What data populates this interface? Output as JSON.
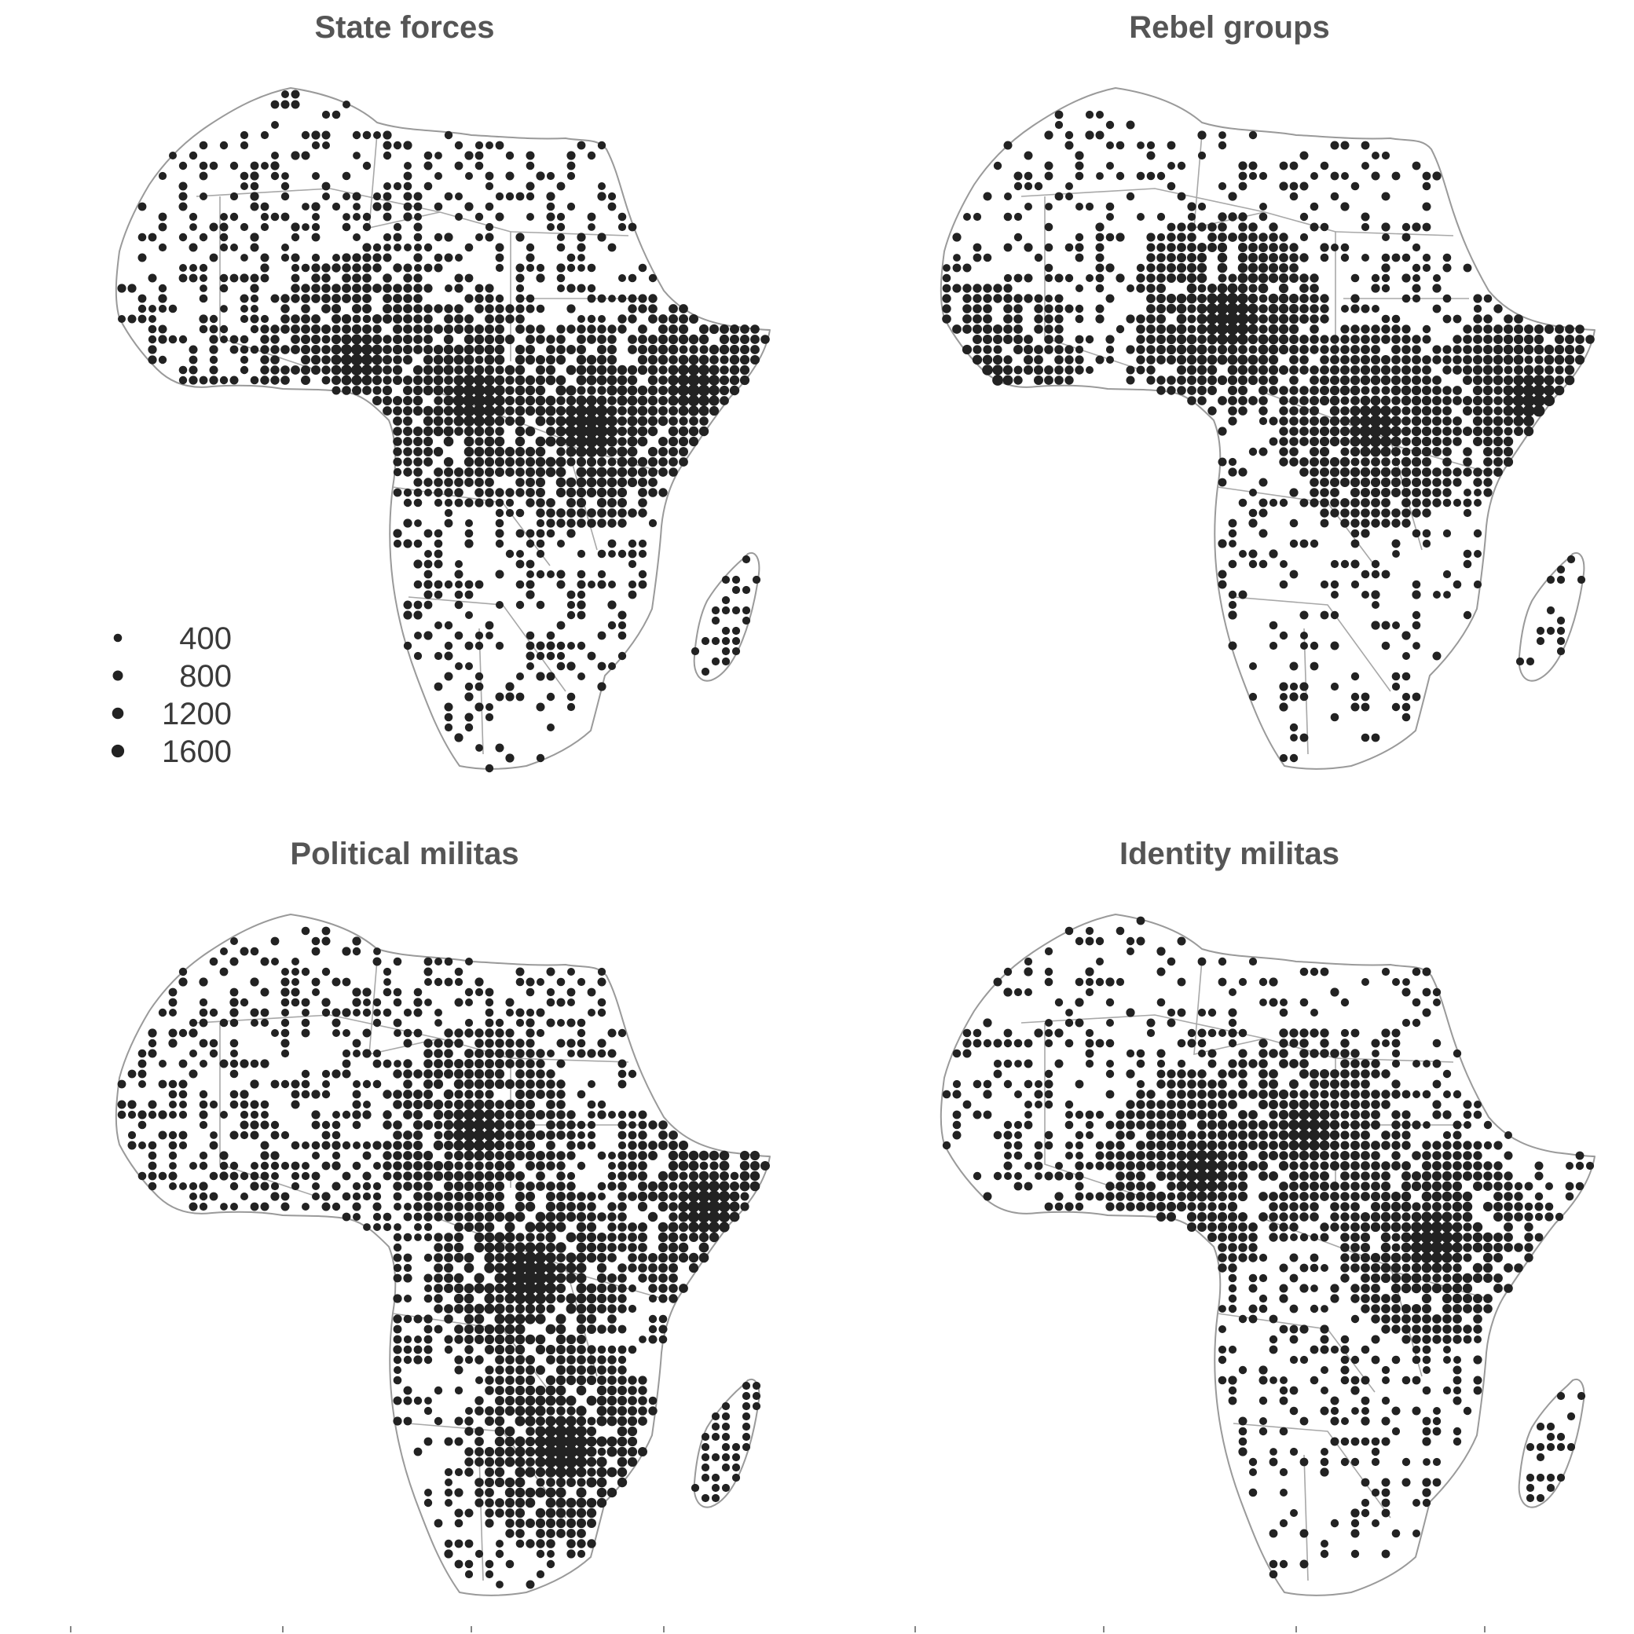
{
  "panels": [
    {
      "id": "state",
      "title": "State forces",
      "seed": 11,
      "density": 0.55,
      "hotspots": [
        [
          0.72,
          0.5,
          1500
        ],
        [
          0.55,
          0.46,
          1300
        ],
        [
          0.37,
          0.4,
          900
        ],
        [
          0.88,
          0.44,
          1100
        ]
      ]
    },
    {
      "id": "rebel",
      "title": "Rebel groups",
      "seed": 23,
      "density": 0.42,
      "hotspots": [
        [
          0.44,
          0.34,
          1300
        ],
        [
          0.66,
          0.5,
          1100
        ],
        [
          0.9,
          0.46,
          1200
        ],
        [
          0.07,
          0.44,
          900
        ]
      ]
    },
    {
      "id": "political",
      "title": "Political militas",
      "seed": 37,
      "density": 0.65,
      "hotspots": [
        [
          0.63,
          0.53,
          1700
        ],
        [
          0.68,
          0.78,
          1600
        ],
        [
          0.9,
          0.43,
          1300
        ],
        [
          0.55,
          0.32,
          1100
        ]
      ]
    },
    {
      "id": "identity",
      "title": "Identity militas",
      "seed": 53,
      "density": 0.48,
      "hotspots": [
        [
          0.75,
          0.48,
          1200
        ],
        [
          0.4,
          0.38,
          1000
        ],
        [
          0.56,
          0.32,
          900
        ]
      ]
    }
  ],
  "legend": {
    "items": [
      {
        "label": "400",
        "value": 400
      },
      {
        "label": "800",
        "value": 800
      },
      {
        "label": "1200",
        "value": 1200
      },
      {
        "label": "1600",
        "value": 1600
      }
    ]
  },
  "colors": {
    "dot": "#222222",
    "border": "#9a9a9a",
    "title": "#555555"
  }
}
